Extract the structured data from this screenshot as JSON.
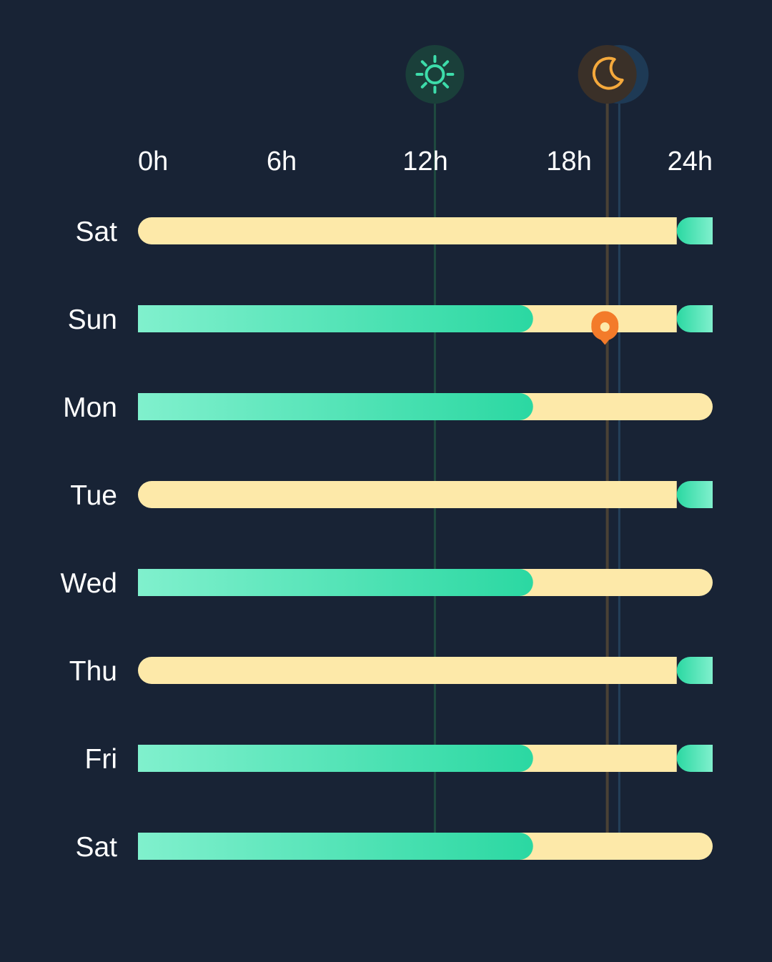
{
  "chart_data": {
    "type": "bar",
    "x_unit": "h",
    "xlim": [
      0,
      24
    ],
    "x_ticks": [
      "0h",
      "6h",
      "12h",
      "18h",
      "24h"
    ],
    "x_tick_values": [
      0,
      6,
      12,
      18,
      24
    ],
    "categories": [
      "Sat",
      "Sun",
      "Mon",
      "Tue",
      "Wed",
      "Thu",
      "Fri",
      "Sat"
    ],
    "rows": [
      {
        "day": "Sat",
        "segments": [
          {
            "kind": "light",
            "start": 0,
            "end": 22.5
          },
          {
            "kind": "dark",
            "start": 22.5,
            "end": 24
          }
        ]
      },
      {
        "day": "Sun",
        "segments": [
          {
            "kind": "dark",
            "start": 0,
            "end": 16.5
          },
          {
            "kind": "light",
            "start": 16.5,
            "end": 22.5
          },
          {
            "kind": "dark",
            "start": 22.5,
            "end": 24
          }
        ]
      },
      {
        "day": "Mon",
        "segments": [
          {
            "kind": "dark",
            "start": 0,
            "end": 16.5
          },
          {
            "kind": "light",
            "start": 16.5,
            "end": 24
          }
        ]
      },
      {
        "day": "Tue",
        "segments": [
          {
            "kind": "light",
            "start": 0,
            "end": 22.5
          },
          {
            "kind": "dark",
            "start": 22.5,
            "end": 24
          }
        ]
      },
      {
        "day": "Wed",
        "segments": [
          {
            "kind": "dark",
            "start": 0,
            "end": 16.5
          },
          {
            "kind": "light",
            "start": 16.5,
            "end": 24
          }
        ]
      },
      {
        "day": "Thu",
        "segments": [
          {
            "kind": "light",
            "start": 0,
            "end": 22.5
          },
          {
            "kind": "dark",
            "start": 22.5,
            "end": 24
          }
        ]
      },
      {
        "day": "Fri",
        "segments": [
          {
            "kind": "dark",
            "start": 0,
            "end": 16.5
          },
          {
            "kind": "light",
            "start": 16.5,
            "end": 22.5
          },
          {
            "kind": "dark",
            "start": 22.5,
            "end": 24
          }
        ]
      },
      {
        "day": "Sat",
        "segments": [
          {
            "kind": "dark",
            "start": 0,
            "end": 16.5
          },
          {
            "kind": "light",
            "start": 16.5,
            "end": 24
          }
        ]
      }
    ],
    "markers": [
      {
        "icon": "sun-icon",
        "x": 12.4,
        "color": "#3ddcaa"
      },
      {
        "icon": "moon-icon",
        "x": 19.6,
        "color": "#f5a93c"
      },
      {
        "icon": "secondary-marker",
        "x": 20.1,
        "color": "#2c4a66"
      }
    ],
    "pin": {
      "icon": "location-pin-icon",
      "x": 19.5,
      "row_between": [
        1,
        2
      ],
      "color": "#f37b2a"
    },
    "colors": {
      "background": "#182335",
      "light_bar": "#fde9a9",
      "dark_bar_start": "#80f0cd",
      "dark_bar_end": "#2bd8a2",
      "sun_line": "#1f4a40",
      "moon_line": "#4a4135",
      "secondary_line": "#24405a"
    },
    "grid": false,
    "legend": "none"
  }
}
